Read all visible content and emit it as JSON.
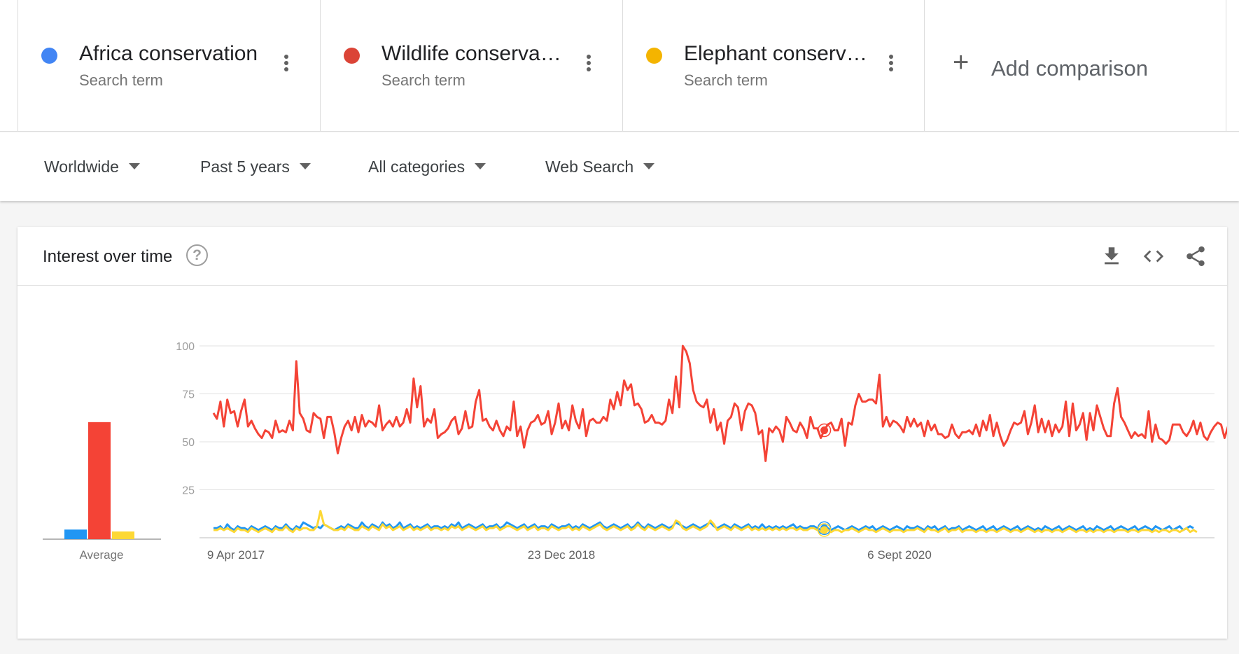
{
  "comparison": {
    "terms": [
      {
        "label": "Africa conservation",
        "sub": "Search term",
        "color": "#4285f4"
      },
      {
        "label": "Wildlife conservati…",
        "sub": "Search term",
        "color": "#db4437"
      },
      {
        "label": "Elephant conserva…",
        "sub": "Search term",
        "color": "#f4b400"
      }
    ],
    "add_label": "Add comparison"
  },
  "filters": {
    "region": "Worldwide",
    "time": "Past 5 years",
    "category": "All categories",
    "property": "Web Search"
  },
  "card": {
    "title": "Interest over time",
    "help_icon": "help-circle-icon",
    "tools": [
      "download-icon",
      "embed-code-icon",
      "share-icon"
    ]
  },
  "chart_data": {
    "type": "line",
    "y_ticks": [
      "100",
      "75",
      "50",
      "25"
    ],
    "x_ticks": [
      "9 Apr 2017",
      "23 Dec 2018",
      "6 Sept 2020"
    ],
    "ylim": [
      0,
      100
    ],
    "average_label": "Average",
    "average": [
      {
        "name": "Africa conservation",
        "value": 5,
        "color": "#2196f3"
      },
      {
        "name": "Wildlife conservation",
        "value": 61,
        "color": "#f44336"
      },
      {
        "name": "Elephant conservation",
        "value": 4,
        "color": "#fdd835"
      }
    ],
    "highlight_week_index": 177,
    "series": [
      {
        "name": "Africa conservation",
        "color": "#2196f3",
        "values": [
          5,
          5,
          6,
          4,
          7,
          5,
          4,
          6,
          5,
          5,
          4,
          6,
          5,
          4,
          5,
          6,
          5,
          4,
          6,
          5,
          5,
          7,
          5,
          4,
          6,
          5,
          8,
          7,
          6,
          5,
          6,
          5,
          7,
          6,
          5,
          4,
          5,
          6,
          5,
          7,
          6,
          5,
          5,
          8,
          6,
          5,
          7,
          6,
          5,
          8,
          6,
          7,
          5,
          6,
          8,
          5,
          6,
          7,
          5,
          6,
          5,
          6,
          7,
          5,
          6,
          6,
          5,
          6,
          5,
          7,
          6,
          8,
          5,
          6,
          7,
          6,
          5,
          6,
          7,
          5,
          6,
          6,
          7,
          5,
          6,
          8,
          7,
          6,
          5,
          6,
          7,
          5,
          6,
          7,
          5,
          6,
          6,
          5,
          7,
          6,
          5,
          6,
          6,
          7,
          5,
          6,
          5,
          7,
          6,
          5,
          6,
          7,
          8,
          6,
          5,
          6,
          7,
          6,
          5,
          6,
          7,
          5,
          6,
          8,
          6,
          5,
          7,
          6,
          5,
          6,
          7,
          6,
          5,
          6,
          8,
          7,
          6,
          5,
          6,
          7,
          6,
          5,
          6,
          7,
          8,
          6,
          5,
          6,
          7,
          6,
          5,
          7,
          6,
          5,
          6,
          7,
          5,
          6,
          5,
          7,
          5,
          6,
          5,
          6,
          5,
          6,
          5,
          6,
          7,
          5,
          6,
          5,
          5,
          6,
          6,
          5,
          4,
          5,
          5,
          4,
          5,
          6,
          5,
          4,
          5,
          6,
          5,
          4,
          5,
          6,
          5,
          6,
          4,
          5,
          6,
          5,
          4,
          5,
          6,
          5,
          4,
          6,
          5,
          5,
          6,
          5,
          4,
          6,
          5,
          6,
          4,
          5,
          6,
          4,
          5,
          5,
          6,
          4,
          5,
          6,
          5,
          4,
          5,
          6,
          4,
          5,
          6,
          4,
          5,
          6,
          5,
          4,
          5,
          6,
          4,
          5,
          6,
          5,
          4,
          5,
          4,
          6,
          5,
          4,
          5,
          6,
          4,
          5,
          6,
          5,
          4,
          5,
          6,
          4,
          5,
          4,
          6,
          5,
          4,
          5,
          6,
          4,
          5,
          6,
          5,
          4,
          5,
          6,
          4,
          5,
          6,
          5,
          4,
          6,
          5,
          4,
          5,
          6,
          4,
          5,
          6,
          4,
          5,
          6,
          5
        ]
      },
      {
        "name": "Wildlife conservation",
        "color": "#f44336",
        "values": [
          65,
          62,
          71,
          58,
          72,
          65,
          66,
          58,
          66,
          72,
          58,
          61,
          57,
          54,
          52,
          56,
          55,
          52,
          61,
          55,
          56,
          55,
          61,
          56,
          92,
          65,
          62,
          56,
          55,
          65,
          63,
          62,
          52,
          63,
          63,
          55,
          44,
          52,
          58,
          61,
          56,
          63,
          55,
          64,
          58,
          61,
          60,
          58,
          69,
          56,
          59,
          61,
          58,
          63,
          58,
          60,
          67,
          60,
          83,
          68,
          79,
          58,
          62,
          60,
          67,
          52,
          54,
          55,
          57,
          61,
          63,
          54,
          57,
          66,
          57,
          58,
          71,
          77,
          61,
          62,
          58,
          56,
          61,
          56,
          53,
          58,
          56,
          71,
          53,
          58,
          47,
          56,
          60,
          61,
          64,
          59,
          60,
          66,
          54,
          60,
          70,
          57,
          61,
          56,
          69,
          61,
          57,
          67,
          53,
          61,
          62,
          60,
          60,
          63,
          61,
          72,
          67,
          76,
          69,
          82,
          77,
          80,
          69,
          70,
          67,
          60,
          61,
          64,
          60,
          60,
          59,
          61,
          72,
          65,
          84,
          68,
          100,
          97,
          91,
          77,
          71,
          69,
          68,
          72,
          60,
          67,
          56,
          60,
          49,
          61,
          63,
          70,
          68,
          56,
          66,
          70,
          69,
          65,
          54,
          56,
          40,
          57,
          55,
          58,
          56,
          50,
          63,
          60,
          56,
          55,
          60,
          57,
          52,
          63,
          57,
          57,
          52,
          56,
          59,
          60,
          56,
          56,
          62,
          48,
          60,
          59,
          69,
          75,
          71,
          71,
          72,
          72,
          70,
          85,
          58,
          63,
          58,
          61,
          60,
          58,
          55,
          63,
          58,
          62,
          58,
          60,
          53,
          61,
          56,
          59,
          54,
          54,
          52,
          53,
          59,
          54,
          52,
          55,
          55,
          56,
          54,
          59,
          53,
          61,
          56,
          64,
          53,
          60,
          53,
          48,
          51,
          56,
          60,
          59,
          60,
          66,
          54,
          60,
          69,
          55,
          62,
          55,
          61,
          53,
          59,
          55,
          58,
          71,
          53,
          70,
          56,
          59,
          65,
          51,
          65,
          56,
          69,
          63,
          57,
          53,
          53,
          70,
          78,
          63,
          60,
          56,
          52,
          55,
          53,
          54,
          52,
          66,
          50,
          59,
          52,
          51,
          49,
          51,
          59,
          59,
          59,
          55,
          53,
          56,
          61,
          54,
          60,
          53,
          51,
          55,
          58,
          60,
          59,
          52,
          58,
          56,
          62,
          48,
          58,
          61,
          50,
          61,
          57,
          57
        ]
      },
      {
        "name": "Elephant conservation",
        "color": "#fdd835",
        "values": [
          4,
          4,
          5,
          4,
          5,
          4,
          3,
          5,
          4,
          4,
          3,
          5,
          4,
          3,
          4,
          5,
          4,
          3,
          5,
          4,
          4,
          6,
          4,
          3,
          5,
          4,
          5,
          5,
          4,
          4,
          6,
          14,
          7,
          6,
          5,
          4,
          4,
          5,
          4,
          6,
          5,
          4,
          4,
          6,
          5,
          4,
          6,
          5,
          4,
          7,
          5,
          6,
          4,
          5,
          6,
          4,
          5,
          6,
          4,
          5,
          4,
          5,
          6,
          4,
          5,
          5,
          4,
          5,
          4,
          6,
          5,
          6,
          4,
          5,
          6,
          5,
          4,
          5,
          6,
          4,
          5,
          5,
          6,
          4,
          5,
          6,
          6,
          5,
          4,
          5,
          6,
          4,
          5,
          6,
          4,
          5,
          5,
          4,
          6,
          5,
          4,
          5,
          5,
          6,
          4,
          5,
          4,
          6,
          5,
          4,
          5,
          6,
          7,
          5,
          4,
          5,
          6,
          5,
          4,
          5,
          6,
          4,
          5,
          7,
          5,
          4,
          6,
          5,
          4,
          5,
          6,
          5,
          4,
          5,
          9,
          8,
          5,
          4,
          5,
          6,
          5,
          4,
          5,
          6,
          9,
          7,
          4,
          5,
          6,
          5,
          4,
          6,
          5,
          4,
          5,
          6,
          4,
          5,
          4,
          5,
          4,
          5,
          4,
          5,
          4,
          5,
          4,
          5,
          5,
          4,
          5,
          4,
          4,
          5,
          5,
          4,
          3,
          4,
          4,
          3,
          4,
          4,
          3,
          4,
          4,
          5,
          4,
          3,
          4,
          5,
          4,
          4,
          3,
          4,
          5,
          4,
          3,
          4,
          4,
          4,
          3,
          4,
          4,
          4,
          5,
          4,
          3,
          5,
          4,
          4,
          3,
          4,
          5,
          3,
          4,
          4,
          5,
          3,
          4,
          4,
          4,
          3,
          4,
          4,
          3,
          4,
          4,
          3,
          4,
          5,
          4,
          3,
          4,
          4,
          3,
          4,
          5,
          4,
          3,
          4,
          3,
          4,
          4,
          3,
          4,
          4,
          3,
          4,
          5,
          4,
          3,
          4,
          4,
          3,
          4,
          3,
          4,
          4,
          3,
          4,
          4,
          3,
          4,
          4,
          4,
          3,
          4,
          4,
          3,
          4,
          4,
          4,
          3,
          4,
          3,
          4,
          4,
          3,
          4,
          4,
          3,
          4,
          5,
          3,
          4,
          3
        ]
      }
    ]
  }
}
